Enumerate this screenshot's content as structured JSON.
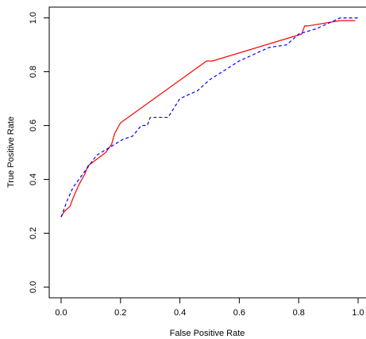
{
  "chart_data": {
    "type": "line",
    "x_label": "False Positive Rate",
    "y_label": "True Positive Rate",
    "xlim": [
      -0.04,
      1.04
    ],
    "ylim": [
      -0.04,
      1.04
    ],
    "xticks": [
      {
        "value": 0,
        "label": "0.0"
      },
      0.2,
      0.4,
      0.6,
      0.8,
      {
        "value": 1,
        "label": "1.0"
      }
    ],
    "yticks": [
      {
        "value": 0,
        "label": "0.0"
      },
      0.2,
      0.4,
      0.6,
      0.8,
      {
        "value": 1,
        "label": "1.0"
      }
    ],
    "series": [
      {
        "color": "#ff0000",
        "dash": "solid",
        "x": [
          0,
          0.01,
          0.03,
          0.04,
          0.06,
          0.08,
          0.09,
          0.15,
          0.17,
          0.18,
          0.2,
          0.49,
          0.51,
          0.81,
          0.82,
          0.83,
          0.94,
          0.99
        ],
        "values": [
          0.26,
          0.28,
          0.3,
          0.33,
          0.38,
          0.42,
          0.45,
          0.5,
          0.53,
          0.57,
          0.61,
          0.84,
          0.84,
          0.94,
          0.97,
          0.97,
          0.99,
          0.99
        ]
      },
      {
        "color": "#0000ff",
        "dash": "dashed",
        "x": [
          0,
          0.02,
          0.04,
          0.06,
          0.08,
          0.1,
          0.12,
          0.15,
          0.18,
          0.21,
          0.24,
          0.27,
          0.29,
          0.3,
          0.36,
          0.4,
          0.46,
          0.5,
          0.6,
          0.7,
          0.76,
          0.8,
          0.86,
          0.94,
          1.0
        ],
        "values": [
          0.26,
          0.32,
          0.37,
          0.4,
          0.43,
          0.46,
          0.49,
          0.51,
          0.53,
          0.55,
          0.56,
          0.6,
          0.6,
          0.63,
          0.63,
          0.7,
          0.73,
          0.77,
          0.84,
          0.89,
          0.9,
          0.94,
          0.96,
          1.0,
          1.0
        ]
      }
    ]
  }
}
